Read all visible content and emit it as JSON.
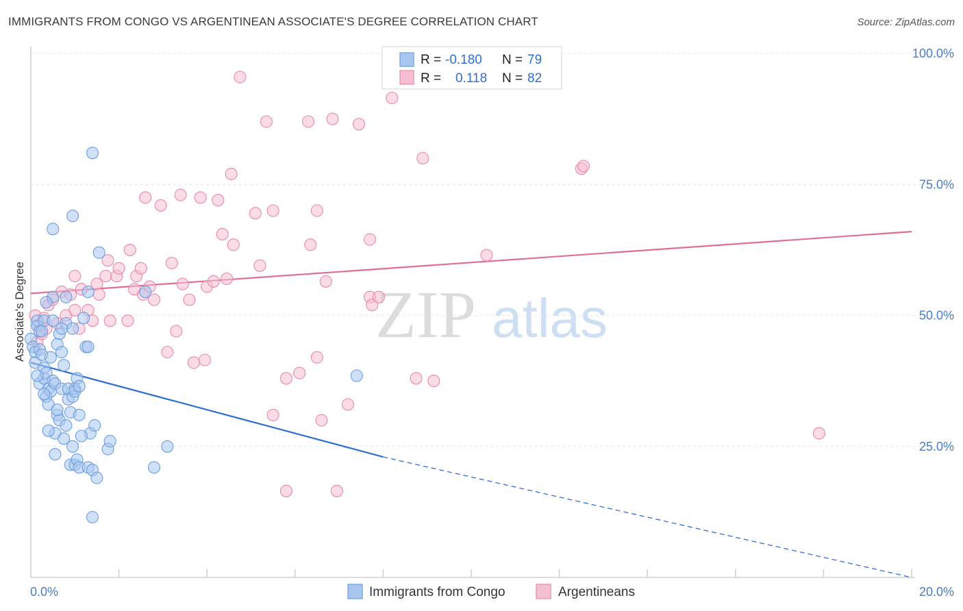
{
  "title": "IMMIGRANTS FROM CONGO VS ARGENTINEAN ASSOCIATE'S DEGREE CORRELATION CHART",
  "source": "Source: ZipAtlas.com",
  "watermark": {
    "zip": "ZIP",
    "atlas": "atlas"
  },
  "colors": {
    "blue": "#6a9ee0",
    "blue_fill": "#a9c6ef",
    "pink": "#e889a8",
    "pink_fill": "#f6bfd1",
    "blue_line": "#2f6fd0",
    "pink_line": "#e06d96",
    "tick": "#4a7cc7"
  },
  "stats_legend": [
    {
      "r_label": "R =",
      "r_value": "-0.180",
      "n_label": "N =",
      "n_value": "79"
    },
    {
      "r_label": "R =",
      "r_value": "0.118",
      "n_label": "N =",
      "n_value": "82"
    }
  ],
  "bottom_legend": [
    "Immigrants from Congo",
    "Argentineans"
  ],
  "chart_data": {
    "type": "scatter",
    "title": "IMMIGRANTS FROM CONGO VS ARGENTINEAN ASSOCIATE'S DEGREE CORRELATION CHART",
    "xlabel": "",
    "ylabel": "Associate's Degree",
    "xlim": [
      0,
      20
    ],
    "ylim": [
      0,
      100
    ],
    "x_tick_labels": [
      "0.0%",
      "20.0%"
    ],
    "y_tick_labels": [
      "100.0%",
      "75.0%",
      "50.0%",
      "25.0%"
    ],
    "y_ticks": [
      100,
      75,
      50,
      25
    ],
    "grid": true,
    "legend_position": "top-center",
    "series": [
      {
        "name": "Immigrants from Congo",
        "color": "#6a9ee0",
        "trend": {
          "x0": 0,
          "y0": 41.0,
          "x1": 8.0,
          "y1": 23.0,
          "dashed_to_x": 20,
          "dashed_to_y": 0
        },
        "points": [
          [
            0.0,
            45.5
          ],
          [
            0.05,
            44.0
          ],
          [
            0.1,
            43.0
          ],
          [
            0.1,
            41.0
          ],
          [
            0.15,
            49.0
          ],
          [
            0.15,
            48.0
          ],
          [
            0.2,
            47.0
          ],
          [
            0.2,
            43.5
          ],
          [
            0.2,
            37.0
          ],
          [
            0.25,
            42.5
          ],
          [
            0.3,
            49.0
          ],
          [
            0.3,
            40.0
          ],
          [
            0.3,
            38.0
          ],
          [
            0.35,
            39.0
          ],
          [
            0.35,
            34.5
          ],
          [
            0.4,
            36.0
          ],
          [
            0.4,
            33.0
          ],
          [
            0.45,
            42.0
          ],
          [
            0.45,
            35.5
          ],
          [
            0.5,
            53.5
          ],
          [
            0.5,
            49.0
          ],
          [
            0.5,
            37.5
          ],
          [
            0.55,
            37.0
          ],
          [
            0.55,
            27.5
          ],
          [
            0.6,
            31.0
          ],
          [
            0.65,
            46.5
          ],
          [
            0.6,
            44.5
          ],
          [
            0.65,
            30.0
          ],
          [
            0.7,
            43.0
          ],
          [
            0.7,
            36.0
          ],
          [
            0.75,
            40.5
          ],
          [
            0.75,
            26.5
          ],
          [
            0.8,
            53.5
          ],
          [
            0.8,
            48.5
          ],
          [
            0.85,
            36.0
          ],
          [
            0.85,
            34.0
          ],
          [
            0.9,
            31.5
          ],
          [
            0.9,
            21.5
          ],
          [
            0.95,
            47.5
          ],
          [
            0.95,
            34.5
          ],
          [
            0.95,
            25.0
          ],
          [
            1.0,
            36.0
          ],
          [
            1.0,
            21.5
          ],
          [
            1.0,
            35.5
          ],
          [
            1.05,
            38.0
          ],
          [
            1.05,
            22.5
          ],
          [
            1.1,
            31.0
          ],
          [
            1.1,
            21.0
          ],
          [
            1.1,
            36.5
          ],
          [
            1.2,
            49.5
          ],
          [
            1.25,
            44.0
          ],
          [
            1.3,
            54.5
          ],
          [
            1.3,
            44.0
          ],
          [
            1.3,
            21.0
          ],
          [
            1.35,
            27.5
          ],
          [
            1.4,
            81.0
          ],
          [
            1.4,
            20.5
          ],
          [
            1.45,
            29.0
          ],
          [
            1.5,
            19.0
          ],
          [
            1.4,
            11.5
          ],
          [
            1.55,
            62.0
          ],
          [
            1.75,
            24.5
          ],
          [
            1.8,
            26.0
          ],
          [
            2.6,
            54.5
          ],
          [
            2.8,
            21.0
          ],
          [
            3.1,
            25.0
          ],
          [
            7.4,
            38.5
          ],
          [
            0.5,
            66.5
          ],
          [
            0.95,
            69.0
          ],
          [
            0.3,
            35.0
          ],
          [
            0.15,
            38.5
          ],
          [
            0.25,
            47.0
          ],
          [
            0.4,
            28.0
          ],
          [
            0.6,
            32.0
          ],
          [
            0.35,
            52.5
          ],
          [
            0.7,
            47.5
          ],
          [
            0.55,
            23.5
          ],
          [
            1.15,
            27.0
          ],
          [
            0.8,
            29.0
          ]
        ]
      },
      {
        "name": "Argentineans",
        "color": "#e889a8",
        "trend": {
          "x0": 0,
          "y0": 54.2,
          "x1": 20,
          "y1": 66.0
        },
        "points": [
          [
            0.1,
            50.0
          ],
          [
            0.15,
            45.0
          ],
          [
            0.2,
            48.0
          ],
          [
            0.25,
            46.5
          ],
          [
            0.3,
            49.5
          ],
          [
            0.4,
            52.0
          ],
          [
            0.5,
            53.0
          ],
          [
            0.6,
            48.5
          ],
          [
            0.7,
            54.5
          ],
          [
            0.8,
            50.0
          ],
          [
            0.9,
            54.0
          ],
          [
            1.0,
            51.0
          ],
          [
            1.0,
            57.5
          ],
          [
            1.1,
            47.5
          ],
          [
            1.15,
            55.0
          ],
          [
            1.3,
            51.0
          ],
          [
            1.4,
            49.0
          ],
          [
            1.5,
            56.0
          ],
          [
            1.55,
            54.0
          ],
          [
            1.7,
            57.5
          ],
          [
            1.75,
            60.5
          ],
          [
            1.8,
            49.0
          ],
          [
            1.95,
            57.5
          ],
          [
            2.0,
            59.0
          ],
          [
            2.2,
            49.0
          ],
          [
            2.25,
            62.5
          ],
          [
            2.35,
            55.0
          ],
          [
            2.4,
            57.5
          ],
          [
            2.5,
            59.0
          ],
          [
            2.55,
            54.0
          ],
          [
            2.6,
            72.5
          ],
          [
            2.7,
            55.5
          ],
          [
            2.8,
            53.0
          ],
          [
            2.95,
            71.0
          ],
          [
            3.1,
            43.0
          ],
          [
            3.2,
            60.0
          ],
          [
            3.3,
            47.0
          ],
          [
            3.4,
            73.0
          ],
          [
            3.45,
            56.0
          ],
          [
            3.6,
            53.0
          ],
          [
            3.7,
            41.0
          ],
          [
            3.85,
            72.5
          ],
          [
            3.95,
            41.5
          ],
          [
            4.0,
            55.5
          ],
          [
            4.15,
            56.5
          ],
          [
            4.25,
            72.0
          ],
          [
            4.35,
            65.5
          ],
          [
            4.45,
            57.0
          ],
          [
            4.55,
            77.0
          ],
          [
            4.6,
            63.5
          ],
          [
            4.75,
            95.5
          ],
          [
            5.1,
            69.5
          ],
          [
            5.2,
            59.5
          ],
          [
            5.35,
            87.0
          ],
          [
            5.5,
            31.0
          ],
          [
            5.5,
            70.0
          ],
          [
            5.8,
            16.5
          ],
          [
            5.8,
            38.0
          ],
          [
            6.1,
            39.0
          ],
          [
            6.3,
            87.0
          ],
          [
            6.35,
            63.5
          ],
          [
            6.5,
            42.0
          ],
          [
            6.5,
            70.0
          ],
          [
            6.6,
            30.0
          ],
          [
            6.7,
            56.5
          ],
          [
            6.85,
            87.5
          ],
          [
            6.95,
            16.5
          ],
          [
            7.2,
            33.0
          ],
          [
            7.45,
            86.5
          ],
          [
            7.7,
            64.5
          ],
          [
            7.7,
            53.5
          ],
          [
            7.75,
            52.0
          ],
          [
            7.9,
            53.5
          ],
          [
            8.2,
            91.5
          ],
          [
            8.75,
            38.0
          ],
          [
            8.9,
            80.0
          ],
          [
            9.15,
            37.5
          ],
          [
            10.35,
            61.5
          ],
          [
            12.5,
            78.0
          ],
          [
            12.55,
            78.5
          ],
          [
            17.9,
            27.5
          ],
          [
            0.35,
            47.5
          ]
        ]
      }
    ]
  }
}
